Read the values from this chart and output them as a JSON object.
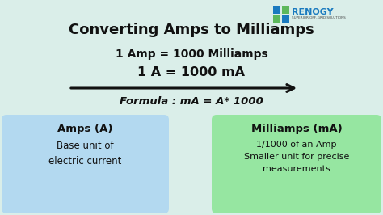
{
  "title": "Converting Amps to Milliamps",
  "line1": "1 Amp = 1000 Milliamps",
  "line2": "1 A = 1000 mA",
  "formula": "Formula : mA = A* 1000",
  "box_left_title": "Amps (A)",
  "box_left_body": "Base unit of\nelectric current",
  "box_right_title": "Milliamps (mA)",
  "box_right_body": "1/1000 of an Amp\nSmaller unit for precise\nmeasurements",
  "bg_color": "#daeee9",
  "box_left_color": "#b3d9f0",
  "box_right_color": "#96e6a1",
  "title_color": "#111111",
  "text_color": "#111111",
  "logo_text": "RENOGY",
  "logo_sub": "SUPERIOR OFF-GRID SOLUTIONS",
  "logo_color": "#1a7abf",
  "logo_green": "#5cb85c",
  "arrow_color": "#111111"
}
